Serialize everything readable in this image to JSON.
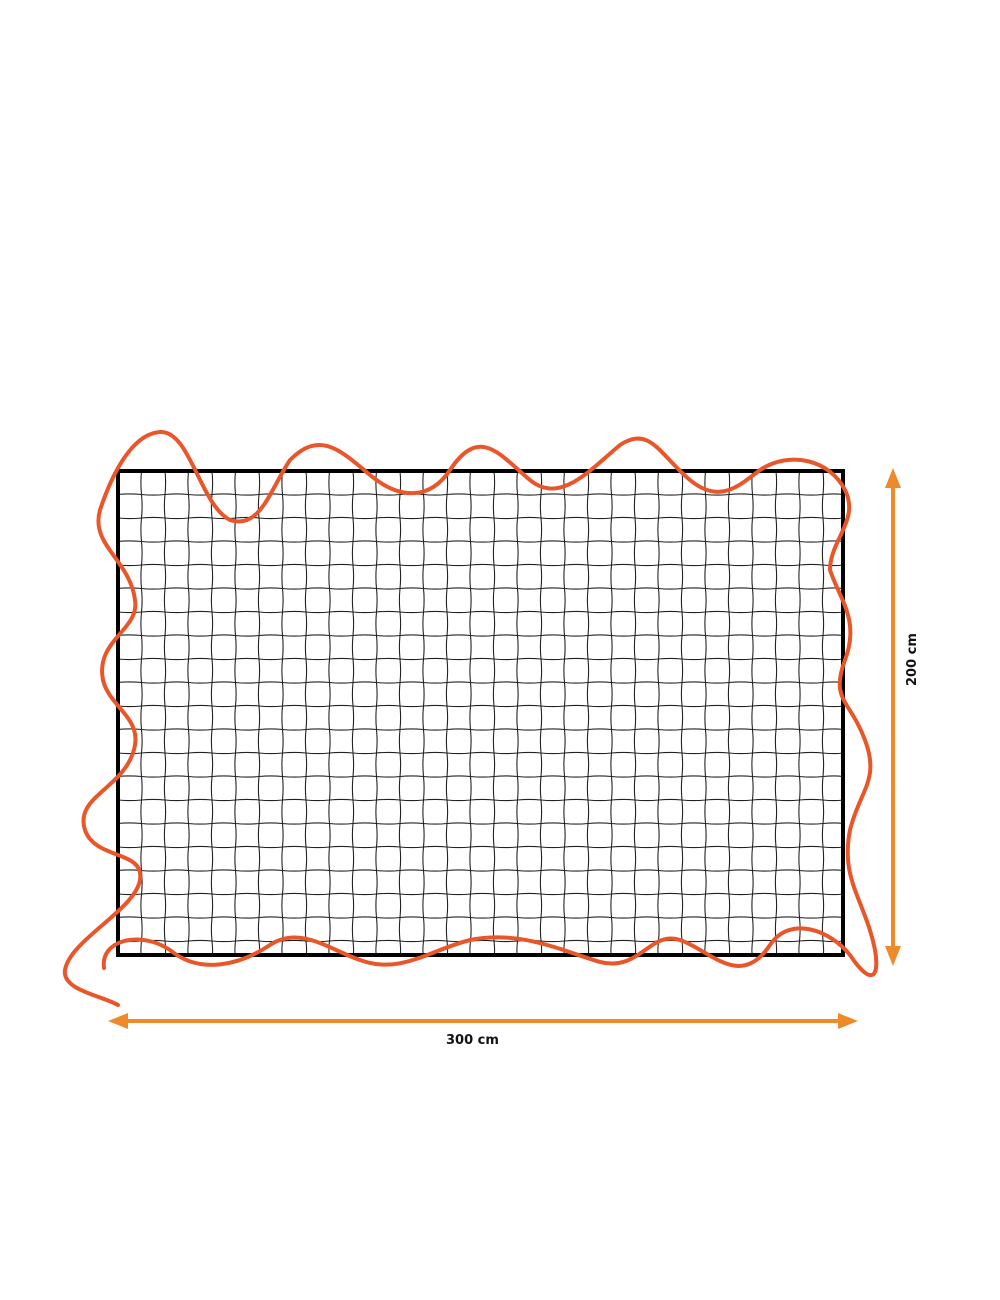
{
  "diagram": {
    "width_label": "300 cm",
    "height_label": "200 cm",
    "colors": {
      "net": "#222222",
      "frame": "#000000",
      "rope": "#e8562a",
      "dimension_arrows": "#ee8a2a"
    }
  }
}
